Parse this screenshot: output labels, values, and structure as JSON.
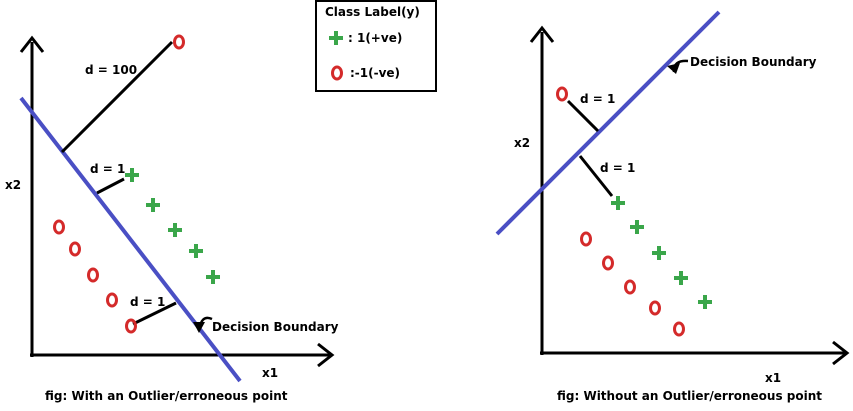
{
  "legend": {
    "title": "Class Label(y)",
    "positive": ": 1(+ve)",
    "negative": ":-1(-ve)"
  },
  "left_plot": {
    "x_axis_label": "x1",
    "y_axis_label": "x2",
    "outlier_distance": "d = 100",
    "positive_distance": "d = 1",
    "negative_distance": "d = 1",
    "boundary_label": "Decision Boundary",
    "caption": "fig: With an Outlier/erroneous point"
  },
  "right_plot": {
    "x_axis_label": "x1",
    "y_axis_label": "x2",
    "negative_distance": "d = 1",
    "positive_distance": "d = 1",
    "boundary_label": "Decision Boundary",
    "caption": "fig: Without an Outlier/erroneous point"
  },
  "colors": {
    "boundary": "#4a4fc4",
    "positive": "#3aa64a",
    "negative": "#d42a2a",
    "axis": "#000000"
  }
}
